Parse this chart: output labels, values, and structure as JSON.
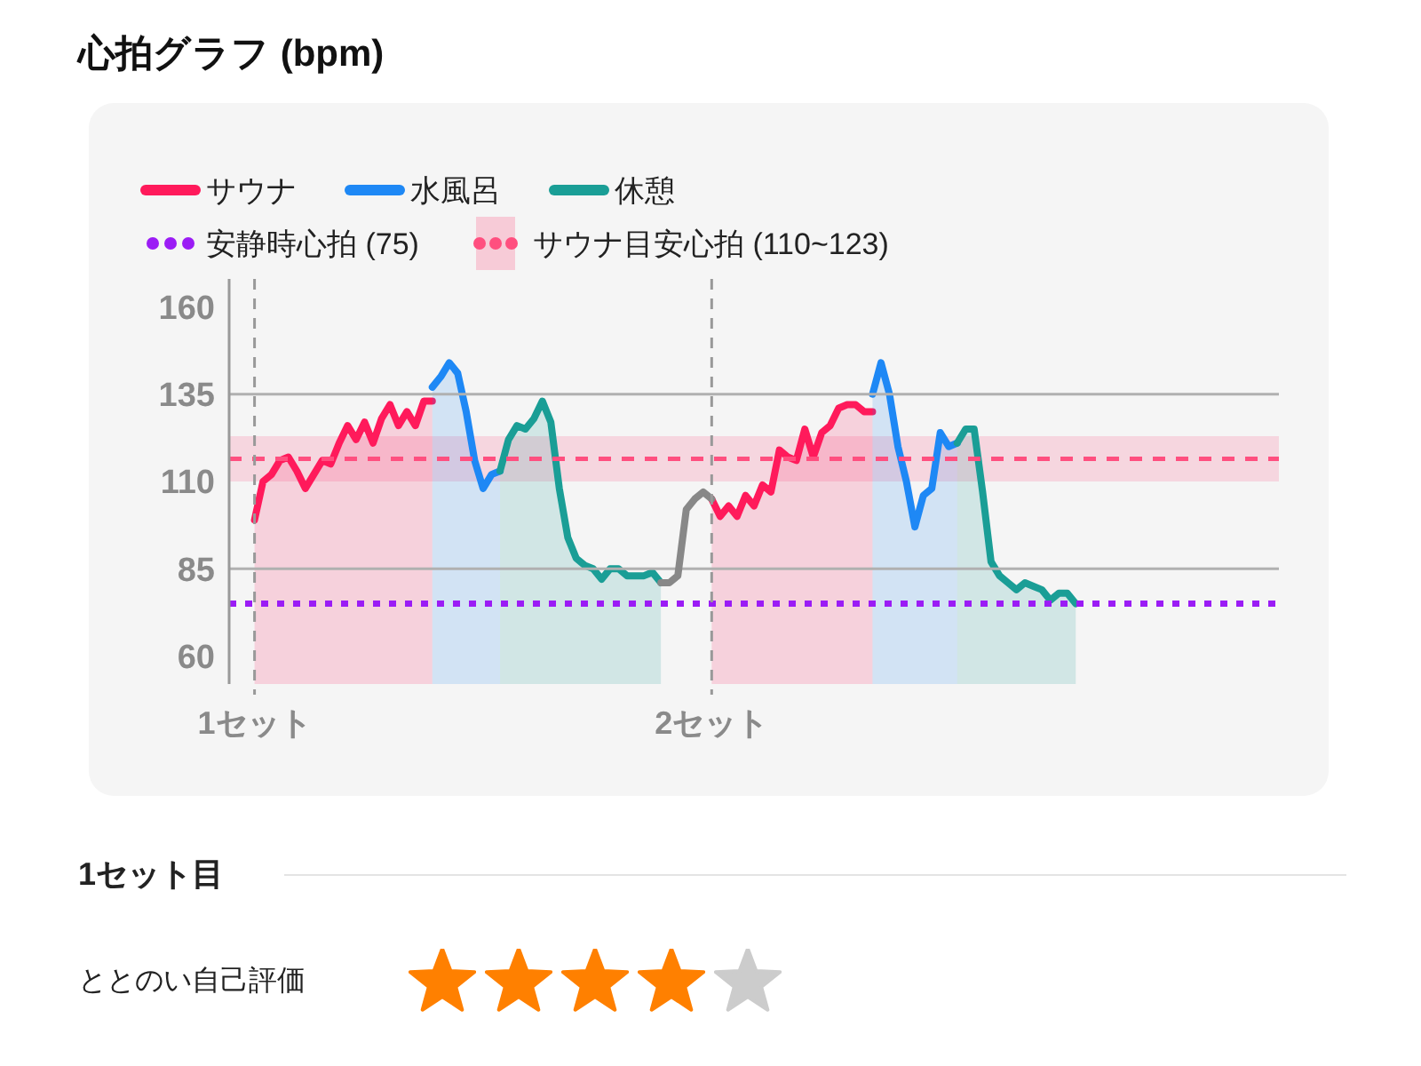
{
  "chart_data": {
    "type": "area",
    "title": "心拍グラフ (bpm)",
    "categories": [
      null,
      null,
      null,
      "1セット",
      null,
      null,
      null,
      null,
      null,
      null,
      null,
      null,
      null,
      null,
      null,
      null,
      null,
      null,
      null,
      null,
      null,
      null,
      null,
      null,
      null,
      null,
      null,
      null,
      null,
      null,
      null,
      null,
      null,
      null,
      null,
      null,
      null,
      null,
      null,
      null,
      null,
      null,
      null,
      null,
      null,
      null,
      null,
      null,
      null,
      null,
      null,
      null,
      null,
      null,
      null,
      null,
      null,
      "2セット",
      null,
      null,
      null,
      null,
      null,
      null,
      null,
      null,
      null,
      null,
      null,
      null,
      null,
      null,
      null,
      null,
      null,
      null,
      null,
      null,
      null,
      null,
      null,
      null,
      null,
      null,
      null,
      null,
      null,
      null,
      null,
      null,
      null,
      null,
      null,
      null,
      null,
      null,
      null,
      null,
      null,
      null,
      null,
      null,
      null,
      null,
      null,
      null,
      null,
      null,
      null,
      null,
      null,
      null,
      null,
      null,
      null,
      null,
      null,
      null,
      null,
      null,
      null,
      null,
      null,
      null,
      null
    ],
    "series": [
      {
        "name": "サウナ",
        "color": "#ff1a5b",
        "values": [
          null,
          null,
          null,
          99,
          110,
          112,
          116,
          117,
          113,
          108,
          112,
          116,
          115,
          121,
          126,
          122,
          127,
          121,
          128,
          132,
          126,
          130,
          126,
          133,
          133,
          null,
          null,
          null,
          null,
          null,
          null,
          null,
          null,
          null,
          null,
          null,
          null,
          null,
          null,
          null,
          null,
          null,
          null,
          null,
          null,
          null,
          null,
          null,
          null,
          null,
          null,
          null,
          null,
          null,
          null,
          null,
          null,
          105,
          100,
          103,
          100,
          106,
          103,
          109,
          107,
          119,
          117,
          116,
          125,
          117,
          124,
          126,
          131,
          132,
          132,
          130,
          130,
          null,
          null,
          null,
          null,
          null,
          null,
          null,
          null,
          null,
          null,
          null,
          null,
          null,
          null,
          null,
          null,
          null,
          null,
          null,
          null,
          null,
          null,
          null,
          null,
          null,
          null,
          null,
          null,
          null,
          null,
          null,
          null,
          null,
          null,
          null,
          null,
          null,
          null,
          null,
          null,
          null,
          null,
          null,
          null,
          null,
          null,
          null,
          null
        ]
      },
      {
        "name": "水風呂",
        "color": "#1e88f5",
        "values": [
          null,
          null,
          null,
          null,
          null,
          null,
          null,
          null,
          null,
          null,
          null,
          null,
          null,
          null,
          null,
          null,
          null,
          null,
          null,
          null,
          null,
          null,
          null,
          null,
          137,
          140,
          144,
          141,
          130,
          116,
          108,
          112,
          113,
          null,
          null,
          null,
          null,
          null,
          null,
          null,
          null,
          null,
          null,
          null,
          null,
          null,
          null,
          null,
          null,
          null,
          null,
          null,
          null,
          null,
          null,
          null,
          null,
          null,
          null,
          null,
          null,
          null,
          null,
          null,
          null,
          null,
          null,
          null,
          null,
          null,
          null,
          null,
          null,
          null,
          null,
          null,
          135,
          144,
          135,
          120,
          110,
          97,
          106,
          108,
          124,
          120,
          121,
          null,
          null,
          null,
          null,
          null,
          null,
          null,
          null,
          null,
          null,
          null,
          null,
          null,
          null,
          null,
          null,
          null,
          null,
          null,
          null,
          null,
          null,
          null,
          null,
          null,
          null,
          null,
          null,
          null,
          null,
          null,
          null,
          null,
          null,
          null,
          null,
          null,
          null
        ]
      },
      {
        "name": "休憩",
        "color": "#1a9e96",
        "values": [
          null,
          null,
          null,
          null,
          null,
          null,
          null,
          null,
          null,
          null,
          null,
          null,
          null,
          null,
          null,
          null,
          null,
          null,
          null,
          null,
          null,
          null,
          null,
          null,
          null,
          null,
          null,
          null,
          null,
          null,
          null,
          null,
          113,
          122,
          126,
          125,
          128,
          133,
          127,
          108,
          94,
          88,
          86,
          85,
          82,
          85,
          85,
          83,
          83,
          83,
          84,
          81,
          null,
          null,
          null,
          null,
          null,
          null,
          null,
          null,
          null,
          null,
          null,
          null,
          null,
          null,
          null,
          null,
          null,
          null,
          null,
          null,
          null,
          null,
          null,
          null,
          null,
          null,
          null,
          null,
          null,
          null,
          null,
          null,
          null,
          null,
          121,
          125,
          125,
          107,
          87,
          83,
          81,
          79,
          81,
          80,
          79,
          76,
          78,
          78,
          75,
          null,
          null,
          null,
          null,
          null,
          null,
          null,
          null,
          null,
          null,
          null,
          null,
          null,
          null,
          null,
          null,
          null,
          null,
          null,
          null,
          null,
          null,
          null,
          null
        ]
      },
      {
        "type": "line",
        "color": "#888888",
        "values": [
          null,
          null,
          null,
          null,
          null,
          null,
          null,
          null,
          null,
          null,
          null,
          null,
          null,
          null,
          null,
          null,
          null,
          null,
          null,
          null,
          null,
          null,
          null,
          null,
          null,
          null,
          null,
          null,
          null,
          null,
          null,
          null,
          null,
          null,
          null,
          null,
          null,
          null,
          null,
          null,
          null,
          null,
          null,
          null,
          null,
          null,
          null,
          null,
          null,
          null,
          null,
          81,
          81,
          83,
          102,
          105,
          107,
          105,
          null,
          null,
          null,
          null,
          null,
          null,
          null,
          null,
          null,
          null,
          null,
          null,
          null,
          null,
          null,
          null,
          null,
          null,
          null,
          null,
          null,
          null,
          null,
          null,
          null,
          null,
          null,
          null,
          null,
          null,
          null,
          null,
          null,
          null,
          null,
          null,
          null,
          null,
          null,
          null,
          null,
          null,
          null,
          null,
          null,
          null,
          null,
          null,
          null,
          null,
          null,
          null,
          null,
          null,
          null,
          null,
          null,
          null,
          null,
          null,
          null,
          null,
          null,
          null,
          null,
          null,
          null
        ]
      }
    ],
    "ylim": [
      52,
      168
    ],
    "yticks": [
      160,
      135,
      110,
      85,
      60
    ],
    "grid": "x",
    "legend": "top left",
    "ref_lines": [
      {
        "axis": "y",
        "value": 135,
        "color": "#b0b0b0",
        "line_style": "solid"
      },
      {
        "axis": "y",
        "value": 85,
        "color": "#b0b0b0",
        "line_style": "solid"
      },
      {
        "axis": "y",
        "value": 75,
        "label": "安静時心拍 (75)",
        "color": "#9b1cf5",
        "line_style": "dotted"
      },
      {
        "axis": "y",
        "value": 116.5,
        "color": "#ff4f7f",
        "line_style": "dashed"
      }
    ],
    "bands": [
      {
        "axis": "y",
        "from": 110,
        "to": 123,
        "label": "サウナ目安心拍 (110~123)",
        "color": "#ff4f7f"
      }
    ],
    "annotations": [
      "1セット目",
      "ととのい自己評価"
    ]
  }
}
